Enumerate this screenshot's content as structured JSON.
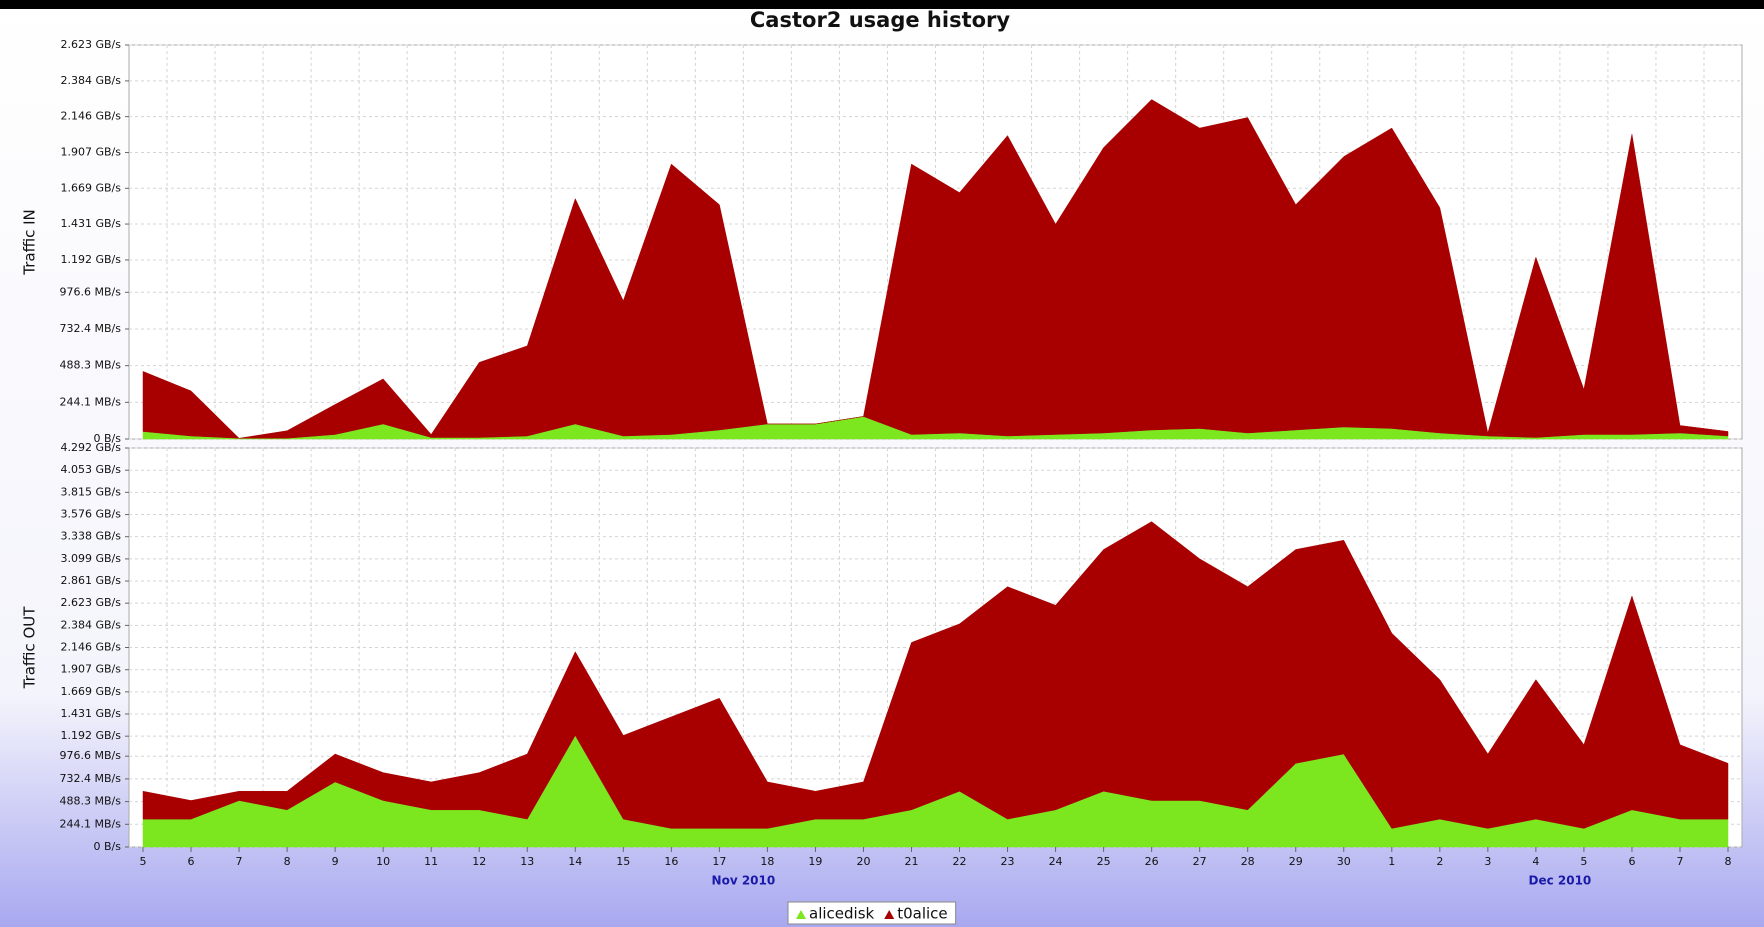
{
  "chart_data": {
    "type": "area",
    "stacked": true,
    "title": "Castor2 usage history",
    "grid": true,
    "legend": "bottom",
    "series": [
      {
        "name": "alicedisk",
        "color": "#7ce61f"
      },
      {
        "name": "t0alice",
        "color": "#a80000"
      }
    ],
    "x": [
      "2010-11-05",
      "2010-11-06",
      "2010-11-07",
      "2010-11-08",
      "2010-11-09",
      "2010-11-10",
      "2010-11-11",
      "2010-11-12",
      "2010-11-13",
      "2010-11-14",
      "2010-11-15",
      "2010-11-16",
      "2010-11-17",
      "2010-11-18",
      "2010-11-19",
      "2010-11-20",
      "2010-11-21",
      "2010-11-22",
      "2010-11-23",
      "2010-11-24",
      "2010-11-25",
      "2010-11-26",
      "2010-11-27",
      "2010-11-28",
      "2010-11-29",
      "2010-11-30",
      "2010-12-01",
      "2010-12-02",
      "2010-12-03",
      "2010-12-04",
      "2010-12-05",
      "2010-12-06",
      "2010-12-07",
      "2010-12-08"
    ],
    "xlim": [
      "2010-11-05",
      "2010-12-08"
    ],
    "xticks": [
      {
        "value": "2010-11-05",
        "label": "5"
      },
      {
        "value": "2010-11-06",
        "label": "6"
      },
      {
        "value": "2010-11-07",
        "label": "7"
      },
      {
        "value": "2010-11-08",
        "label": "8"
      },
      {
        "value": "2010-11-09",
        "label": "9"
      },
      {
        "value": "2010-11-10",
        "label": "10"
      },
      {
        "value": "2010-11-11",
        "label": "11"
      },
      {
        "value": "2010-11-12",
        "label": "12"
      },
      {
        "value": "2010-11-13",
        "label": "13"
      },
      {
        "value": "2010-11-14",
        "label": "14"
      },
      {
        "value": "2010-11-15",
        "label": "15"
      },
      {
        "value": "2010-11-16",
        "label": "16"
      },
      {
        "value": "2010-11-17",
        "label": "17"
      },
      {
        "value": "2010-11-18",
        "label": "18"
      },
      {
        "value": "2010-11-19",
        "label": "19"
      },
      {
        "value": "2010-11-20",
        "label": "20"
      },
      {
        "value": "2010-11-21",
        "label": "21"
      },
      {
        "value": "2010-11-22",
        "label": "22"
      },
      {
        "value": "2010-11-23",
        "label": "23"
      },
      {
        "value": "2010-11-24",
        "label": "24"
      },
      {
        "value": "2010-11-25",
        "label": "25"
      },
      {
        "value": "2010-11-26",
        "label": "26"
      },
      {
        "value": "2010-11-27",
        "label": "27"
      },
      {
        "value": "2010-11-28",
        "label": "28"
      },
      {
        "value": "2010-11-29",
        "label": "29"
      },
      {
        "value": "2010-11-30",
        "label": "30"
      },
      {
        "value": "2010-12-01",
        "label": "1"
      },
      {
        "value": "2010-12-02",
        "label": "2"
      },
      {
        "value": "2010-12-03",
        "label": "3"
      },
      {
        "value": "2010-12-04",
        "label": "4"
      },
      {
        "value": "2010-12-05",
        "label": "5"
      },
      {
        "value": "2010-12-06",
        "label": "6"
      },
      {
        "value": "2010-12-07",
        "label": "7"
      },
      {
        "value": "2010-12-08",
        "label": "8"
      }
    ],
    "months": [
      "Nov 2010",
      "Dec 2010"
    ],
    "panels": [
      {
        "ylabel": "Traffic IN",
        "ylim": [
          0,
          2623
        ],
        "yticks": [
          {
            "value": 0,
            "label": "0 B/s"
          },
          {
            "value": 244.1,
            "label": "244.1 MB/s"
          },
          {
            "value": 488.3,
            "label": "488.3 MB/s"
          },
          {
            "value": 732.4,
            "label": "732.4 MB/s"
          },
          {
            "value": 976.6,
            "label": "976.6 MB/s"
          },
          {
            "value": 1192,
            "label": "1.192 GB/s"
          },
          {
            "value": 1431,
            "label": "1.431 GB/s"
          },
          {
            "value": 1669,
            "label": "1.669 GB/s"
          },
          {
            "value": 1907,
            "label": "1.907 GB/s"
          },
          {
            "value": 2146,
            "label": "2.146 GB/s"
          },
          {
            "value": 2384,
            "label": "2.384 GB/s"
          },
          {
            "value": 2623,
            "label": "2.623 GB/s"
          }
        ],
        "values": [
          [
            50,
            20,
            5,
            5,
            30,
            100,
            10,
            10,
            20,
            100,
            20,
            30,
            60,
            100,
            100,
            150,
            30,
            40,
            20,
            30,
            40,
            60,
            70,
            40,
            60,
            80,
            70,
            40,
            20,
            10,
            30,
            30,
            40,
            20
          ],
          [
            400,
            300,
            0,
            50,
            200,
            300,
            20,
            500,
            600,
            1500,
            900,
            1800,
            1500,
            0,
            0,
            0,
            1800,
            1600,
            2000,
            1400,
            1900,
            2200,
            2000,
            2100,
            1500,
            1800,
            2000,
            1500,
            20,
            1200,
            300,
            2000,
            50,
            30
          ]
        ]
      },
      {
        "ylabel": "Traffic OUT",
        "ylim": [
          0,
          4292
        ],
        "yticks": [
          {
            "value": 0,
            "label": "0 B/s"
          },
          {
            "value": 244.1,
            "label": "244.1 MB/s"
          },
          {
            "value": 488.3,
            "label": "488.3 MB/s"
          },
          {
            "value": 732.4,
            "label": "732.4 MB/s"
          },
          {
            "value": 976.6,
            "label": "976.6 MB/s"
          },
          {
            "value": 1192,
            "label": "1.192 GB/s"
          },
          {
            "value": 1431,
            "label": "1.431 GB/s"
          },
          {
            "value": 1669,
            "label": "1.669 GB/s"
          },
          {
            "value": 1907,
            "label": "1.907 GB/s"
          },
          {
            "value": 2146,
            "label": "2.146 GB/s"
          },
          {
            "value": 2384,
            "label": "2.384 GB/s"
          },
          {
            "value": 2623,
            "label": "2.623 GB/s"
          },
          {
            "value": 2861,
            "label": "2.861 GB/s"
          },
          {
            "value": 3099,
            "label": "3.099 GB/s"
          },
          {
            "value": 3338,
            "label": "3.338 GB/s"
          },
          {
            "value": 3576,
            "label": "3.576 GB/s"
          },
          {
            "value": 3815,
            "label": "3.815 GB/s"
          },
          {
            "value": 4053,
            "label": "4.053 GB/s"
          },
          {
            "value": 4292,
            "label": "4.292 GB/s"
          }
        ],
        "values": [
          [
            300,
            300,
            500,
            400,
            700,
            500,
            400,
            400,
            300,
            1200,
            300,
            200,
            200,
            200,
            300,
            300,
            400,
            600,
            300,
            400,
            600,
            500,
            500,
            400,
            900,
            1000,
            200,
            300,
            200,
            300,
            200,
            400,
            300,
            300
          ],
          [
            300,
            200,
            100,
            200,
            300,
            300,
            300,
            400,
            700,
            900,
            900,
            1200,
            1400,
            500,
            300,
            400,
            1800,
            1800,
            2500,
            2200,
            2600,
            3000,
            2600,
            2400,
            2300,
            2300,
            2100,
            1500,
            800,
            1500,
            900,
            2300,
            800,
            600
          ]
        ]
      }
    ]
  }
}
